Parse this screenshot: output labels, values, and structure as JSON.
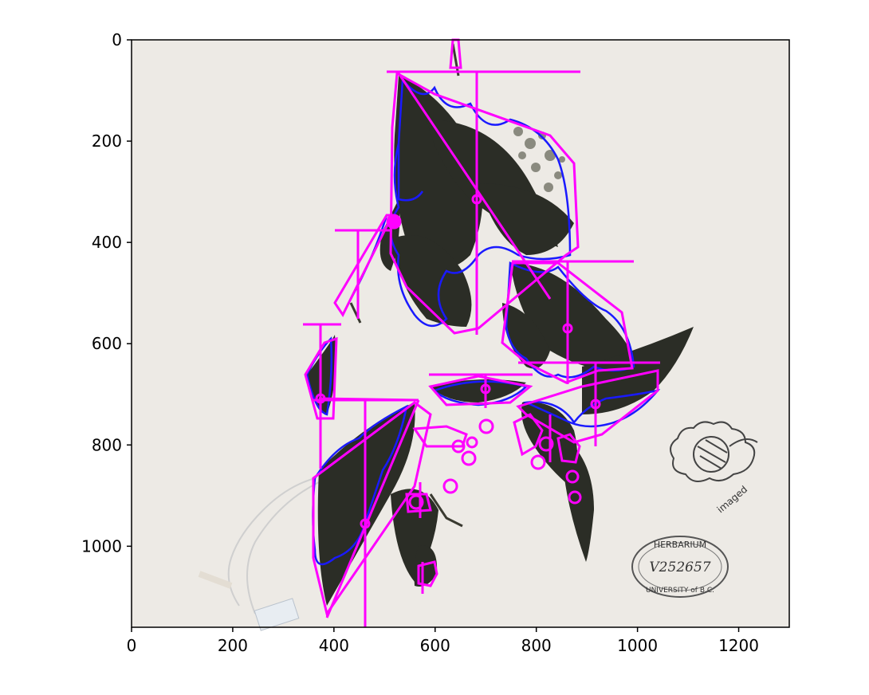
{
  "axes": {
    "x_ticks": [
      "0",
      "200",
      "400",
      "600",
      "800",
      "1000",
      "1200"
    ],
    "y_ticks": [
      "0",
      "200",
      "400",
      "600",
      "800",
      "1000"
    ],
    "xlim": [
      0,
      1300
    ],
    "ylim": [
      1160,
      0
    ]
  },
  "specimen": {
    "logo_text": "imaged",
    "stamp": {
      "top_text": "HERBARIUM",
      "catalog_number": "V252657",
      "bottom_text": "UNIVERSITY of B.C."
    }
  },
  "colors": {
    "background": "#ffffff",
    "image_bg": "#edeae5",
    "leaf": "#2b2d26",
    "contour": "#1a1aff",
    "overlay": "#ff00ff"
  }
}
